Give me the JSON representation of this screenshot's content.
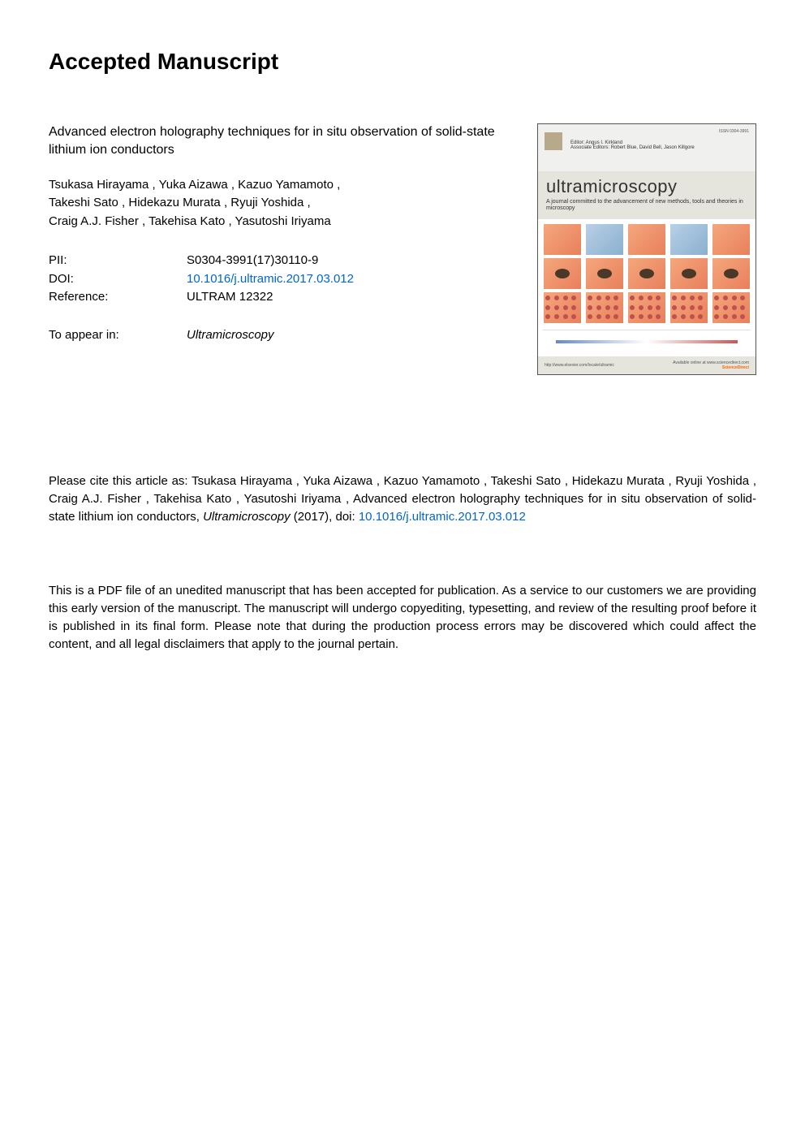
{
  "page_title": "Accepted Manuscript",
  "article_title": "Advanced electron holography techniques for in situ observation of solid-state lithium ion conductors",
  "authors": "Tsukasa Hirayama ,  Yuka Aizawa ,  Kazuo Yamamoto ,\nTakeshi Sato ,  Hidekazu Murata ,  Ryuji Yoshida ,\nCraig A.J. Fisher ,  Takehisa Kato ,  Yasutoshi Iriyama",
  "metadata": {
    "pii_label": "PII:",
    "pii_value": "S0304-3991(17)30110-9",
    "doi_label": "DOI:",
    "doi_value": "10.1016/j.ultramic.2017.03.012",
    "reference_label": "Reference:",
    "reference_value": "ULTRAM 12322",
    "appear_label": "To appear in:",
    "appear_value": "Ultramicroscopy"
  },
  "cover": {
    "issn": "ISSN 0304-3991",
    "editor_line": "Editor: Angus I. Kirkland",
    "assoc_line": "Associate Editors: Robert Blue, David Bell, Jason Killgore",
    "journal_title": "ultramicroscopy",
    "subtitle": "A journal committed to the advancement of new methods, tools and theories in microscopy",
    "url": "http://www.elsevier.com/locate/ultramic",
    "availability": "Available online at www.sciencedirect.com",
    "sciencedirect": "ScienceDirect"
  },
  "citation": {
    "prefix": "Please cite this article as:   Tsukasa Hirayama ,   Yuka Aizawa ,   Kazuo Yamamoto ,   Takeshi Sato ,  Hidekazu Murata ,    Ryuji Yoshida ,    Craig A.J. Fisher ,    Takehisa Kato ,    Yasutoshi Iriyama ,   Advanced electron holography techniques for in situ observation of solid-state lithium ion conductors, ",
    "journal": "Ultramicroscopy",
    "year": " (2017), doi: ",
    "doi": "10.1016/j.ultramic.2017.03.012"
  },
  "disclaimer": "This is a PDF file of an unedited manuscript that has been accepted for publication. As a service to our customers we are providing this early version of the manuscript. The manuscript will undergo copyediting, typesetting, and review of the resulting proof before it is published in its final form. Please note that during the production process errors may be discovered which could affect the content, and all legal disclaimers that apply to the journal pertain.",
  "colors": {
    "link": "#0066cc",
    "text": "#000000",
    "background": "#ffffff"
  }
}
